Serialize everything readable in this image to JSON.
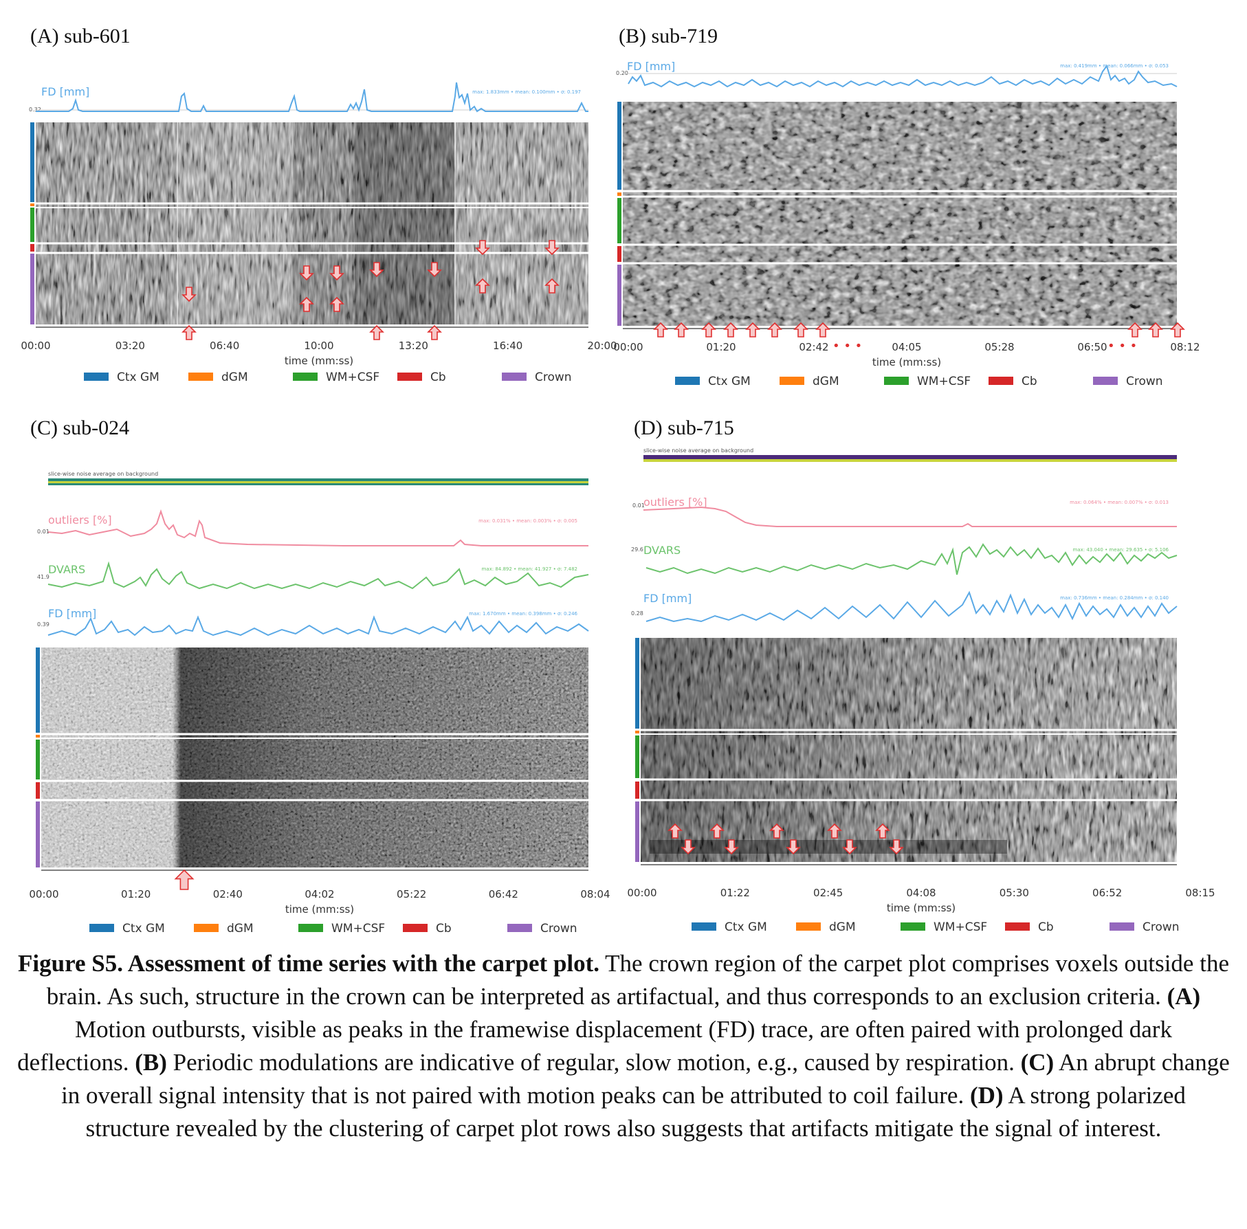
{
  "legend": {
    "items": [
      {
        "label": "Ctx GM",
        "color": "#1f77b4"
      },
      {
        "label": "dGM",
        "color": "#ff7f0e"
      },
      {
        "label": "WM+CSF",
        "color": "#2ca02c"
      },
      {
        "label": "Cb",
        "color": "#d62728"
      },
      {
        "label": "Crown",
        "color": "#9467bd"
      }
    ]
  },
  "axis_label": "time (mm:ss)",
  "panels": [
    {
      "id": "A",
      "title": "(A)  sub-601",
      "ticks": [
        "00:00",
        "03:20",
        "06:40",
        "10:00",
        "13:20",
        "16:40",
        "20:00"
      ],
      "traces": [
        {
          "label": "FD [mm]",
          "color": "#5aa9e6",
          "stat": "max: 1.833mm • mean: 0.100mm • σ: 0.197",
          "tiny": "0.32"
        }
      ]
    },
    {
      "id": "B",
      "title": "(B)  sub-719",
      "ticks": [
        "00:00",
        "01:20",
        "02:42",
        "04:05",
        "05:28",
        "06:50",
        "08:12"
      ],
      "traces": [
        {
          "label": "FD [mm]",
          "color": "#5aa9e6",
          "stat": "max: 0.419mm • mean: 0.066mm • σ: 0.053",
          "tiny": "0.20"
        }
      ]
    },
    {
      "id": "C",
      "title": "(C)  sub-024",
      "ticks": [
        "00:00",
        "01:20",
        "02:40",
        "04:02",
        "05:22",
        "06:42",
        "08:04"
      ],
      "noise_label": "slice-wise noise average on background",
      "traces": [
        {
          "label": "outliers [%]",
          "color": "#f08ca0",
          "stat": "max: 0.031% • mean: 0.003% • σ: 0.005",
          "tiny": "0.01"
        },
        {
          "label": "DVARS",
          "color": "#6cc36c",
          "stat": "max: 84.892 • mean: 41.927 • σ: 7.482",
          "tiny": "41.9"
        },
        {
          "label": "FD [mm]",
          "color": "#5aa9e6",
          "stat": "max: 1.670mm • mean: 0.398mm • σ: 0.246",
          "tiny": "0.39"
        }
      ]
    },
    {
      "id": "D",
      "title": "(D)  sub-715",
      "ticks": [
        "00:00",
        "01:22",
        "02:45",
        "04:08",
        "05:30",
        "06:52",
        "08:15"
      ],
      "noise_label": "slice-wise noise average on background",
      "traces": [
        {
          "label": "outliers [%]",
          "color": "#f08ca0",
          "stat": "max: 0.064% • mean: 0.007% • σ: 0.013",
          "tiny": "0.01"
        },
        {
          "label": "DVARS",
          "color": "#6cc36c",
          "stat": "max: 43.040 • mean: 29.635 • σ: 5.106",
          "tiny": "29.6"
        },
        {
          "label": "FD [mm]",
          "color": "#5aa9e6",
          "stat": "max: 0.736mm • mean: 0.284mm • σ: 0.140",
          "tiny": "0.28"
        }
      ]
    }
  ],
  "caption": {
    "title": "Figure S5. Assessment of time series with the carpet plot.",
    "intro": " The crown region of the carpet plot comprises voxels outside the brain. As such, structure in the crown can be interpreted as artifactual, and thus corresponds to an exclusion criteria. ",
    "a_tag": "(A)",
    "a_text": " Motion outbursts, visible as peaks in the framewise displacement (FD) trace, are often paired with prolonged dark deflections. ",
    "b_tag": "(B)",
    "b_text": " Periodic modulations are indicative of regular, slow motion, e.g., caused by respiration. ",
    "c_tag": "(C)",
    "c_text": " An abrupt change in overall signal intensity that is not paired with motion peaks can be attributed to coil failure. ",
    "d_tag": "(D)",
    "d_text": " A strong polarized structure revealed by the clustering of carpet plot rows also suggests that artifacts mitigate the signal of interest."
  }
}
